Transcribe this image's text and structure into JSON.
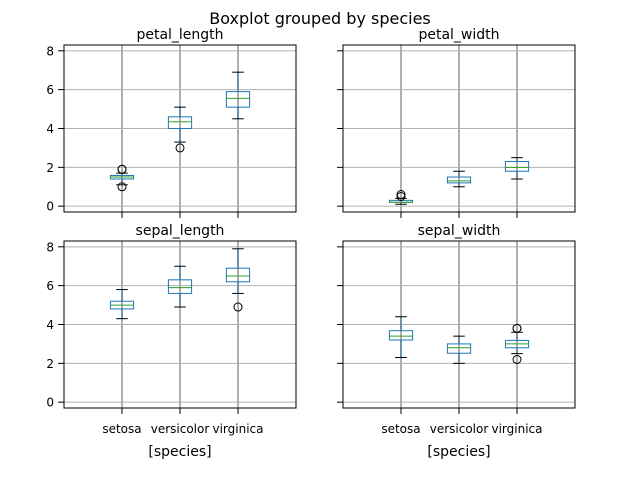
{
  "chart_data": {
    "type": "boxplot",
    "title": "Boxplot grouped by species",
    "xlabel": "[species]",
    "categories": [
      "setosa",
      "versicolor",
      "virginica"
    ],
    "ylim": [
      -0.3,
      8.3
    ],
    "yticks": [
      0,
      2,
      4,
      6,
      8
    ],
    "sharey": true,
    "grid": true,
    "colors": {
      "box": "#1f77b4",
      "median": "#2ca02c",
      "whisker": "#000000",
      "grid": "#b0b0b0"
    },
    "subplots": [
      {
        "title": "petal_length",
        "boxes": [
          {
            "category": "setosa",
            "whislo": 1.1,
            "q1": 1.4,
            "med": 1.5,
            "q3": 1.58,
            "whishi": 1.7,
            "fliers": [
              1.0,
              1.9,
              1.9
            ]
          },
          {
            "category": "versicolor",
            "whislo": 3.3,
            "q1": 4.0,
            "med": 4.35,
            "q3": 4.6,
            "whishi": 5.1,
            "fliers": [
              3.0
            ]
          },
          {
            "category": "virginica",
            "whislo": 4.5,
            "q1": 5.1,
            "med": 5.55,
            "q3": 5.9,
            "whishi": 6.9,
            "fliers": []
          }
        ]
      },
      {
        "title": "petal_width",
        "boxes": [
          {
            "category": "setosa",
            "whislo": 0.1,
            "q1": 0.2,
            "med": 0.2,
            "q3": 0.3,
            "whishi": 0.4,
            "fliers": [
              0.5,
              0.6
            ]
          },
          {
            "category": "versicolor",
            "whislo": 1.0,
            "q1": 1.2,
            "med": 1.3,
            "q3": 1.5,
            "whishi": 1.8,
            "fliers": []
          },
          {
            "category": "virginica",
            "whislo": 1.4,
            "q1": 1.8,
            "med": 2.0,
            "q3": 2.3,
            "whishi": 2.5,
            "fliers": []
          }
        ]
      },
      {
        "title": "sepal_length",
        "boxes": [
          {
            "category": "setosa",
            "whislo": 4.3,
            "q1": 4.8,
            "med": 5.0,
            "q3": 5.2,
            "whishi": 5.8,
            "fliers": []
          },
          {
            "category": "versicolor",
            "whislo": 4.9,
            "q1": 5.6,
            "med": 5.9,
            "q3": 6.3,
            "whishi": 7.0,
            "fliers": []
          },
          {
            "category": "virginica",
            "whislo": 5.6,
            "q1": 6.2,
            "med": 6.5,
            "q3": 6.9,
            "whishi": 7.9,
            "fliers": [
              4.9
            ]
          }
        ]
      },
      {
        "title": "sepal_width",
        "boxes": [
          {
            "category": "setosa",
            "whislo": 2.3,
            "q1": 3.2,
            "med": 3.4,
            "q3": 3.68,
            "whishi": 4.4,
            "fliers": []
          },
          {
            "category": "versicolor",
            "whislo": 2.0,
            "q1": 2.52,
            "med": 2.8,
            "q3": 3.0,
            "whishi": 3.4,
            "fliers": []
          },
          {
            "category": "virginica",
            "whislo": 2.5,
            "q1": 2.8,
            "med": 3.0,
            "q3": 3.18,
            "whishi": 3.6,
            "fliers": [
              2.2,
              3.8,
              3.8
            ]
          }
        ]
      }
    ]
  }
}
